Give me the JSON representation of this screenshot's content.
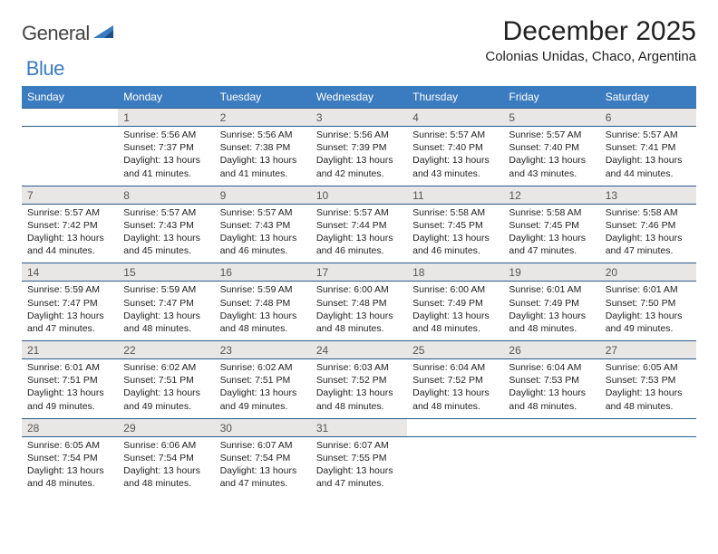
{
  "logo": {
    "text1": "General",
    "text2": "Blue"
  },
  "title": "December 2025",
  "location": "Colonias Unidas, Chaco, Argentina",
  "colors": {
    "header_bg": "#3b7bbf",
    "daynum_bg": "#e8e7e6",
    "row_border": "#2a5a8a"
  },
  "dayHeaders": [
    "Sunday",
    "Monday",
    "Tuesday",
    "Wednesday",
    "Thursday",
    "Friday",
    "Saturday"
  ],
  "weeks": [
    {
      "nums": [
        "",
        "1",
        "2",
        "3",
        "4",
        "5",
        "6"
      ],
      "sun": [
        "",
        "Sunrise: 5:56 AM",
        "Sunrise: 5:56 AM",
        "Sunrise: 5:56 AM",
        "Sunrise: 5:57 AM",
        "Sunrise: 5:57 AM",
        "Sunrise: 5:57 AM"
      ],
      "set": [
        "",
        "Sunset: 7:37 PM",
        "Sunset: 7:38 PM",
        "Sunset: 7:39 PM",
        "Sunset: 7:40 PM",
        "Sunset: 7:40 PM",
        "Sunset: 7:41 PM"
      ],
      "day1": [
        "",
        "Daylight: 13 hours",
        "Daylight: 13 hours",
        "Daylight: 13 hours",
        "Daylight: 13 hours",
        "Daylight: 13 hours",
        "Daylight: 13 hours"
      ],
      "day2": [
        "",
        "and 41 minutes.",
        "and 41 minutes.",
        "and 42 minutes.",
        "and 43 minutes.",
        "and 43 minutes.",
        "and 44 minutes."
      ]
    },
    {
      "nums": [
        "7",
        "8",
        "9",
        "10",
        "11",
        "12",
        "13"
      ],
      "sun": [
        "Sunrise: 5:57 AM",
        "Sunrise: 5:57 AM",
        "Sunrise: 5:57 AM",
        "Sunrise: 5:57 AM",
        "Sunrise: 5:58 AM",
        "Sunrise: 5:58 AM",
        "Sunrise: 5:58 AM"
      ],
      "set": [
        "Sunset: 7:42 PM",
        "Sunset: 7:43 PM",
        "Sunset: 7:43 PM",
        "Sunset: 7:44 PM",
        "Sunset: 7:45 PM",
        "Sunset: 7:45 PM",
        "Sunset: 7:46 PM"
      ],
      "day1": [
        "Daylight: 13 hours",
        "Daylight: 13 hours",
        "Daylight: 13 hours",
        "Daylight: 13 hours",
        "Daylight: 13 hours",
        "Daylight: 13 hours",
        "Daylight: 13 hours"
      ],
      "day2": [
        "and 44 minutes.",
        "and 45 minutes.",
        "and 46 minutes.",
        "and 46 minutes.",
        "and 46 minutes.",
        "and 47 minutes.",
        "and 47 minutes."
      ]
    },
    {
      "nums": [
        "14",
        "15",
        "16",
        "17",
        "18",
        "19",
        "20"
      ],
      "sun": [
        "Sunrise: 5:59 AM",
        "Sunrise: 5:59 AM",
        "Sunrise: 5:59 AM",
        "Sunrise: 6:00 AM",
        "Sunrise: 6:00 AM",
        "Sunrise: 6:01 AM",
        "Sunrise: 6:01 AM"
      ],
      "set": [
        "Sunset: 7:47 PM",
        "Sunset: 7:47 PM",
        "Sunset: 7:48 PM",
        "Sunset: 7:48 PM",
        "Sunset: 7:49 PM",
        "Sunset: 7:49 PM",
        "Sunset: 7:50 PM"
      ],
      "day1": [
        "Daylight: 13 hours",
        "Daylight: 13 hours",
        "Daylight: 13 hours",
        "Daylight: 13 hours",
        "Daylight: 13 hours",
        "Daylight: 13 hours",
        "Daylight: 13 hours"
      ],
      "day2": [
        "and 47 minutes.",
        "and 48 minutes.",
        "and 48 minutes.",
        "and 48 minutes.",
        "and 48 minutes.",
        "and 48 minutes.",
        "and 49 minutes."
      ]
    },
    {
      "nums": [
        "21",
        "22",
        "23",
        "24",
        "25",
        "26",
        "27"
      ],
      "sun": [
        "Sunrise: 6:01 AM",
        "Sunrise: 6:02 AM",
        "Sunrise: 6:02 AM",
        "Sunrise: 6:03 AM",
        "Sunrise: 6:04 AM",
        "Sunrise: 6:04 AM",
        "Sunrise: 6:05 AM"
      ],
      "set": [
        "Sunset: 7:51 PM",
        "Sunset: 7:51 PM",
        "Sunset: 7:51 PM",
        "Sunset: 7:52 PM",
        "Sunset: 7:52 PM",
        "Sunset: 7:53 PM",
        "Sunset: 7:53 PM"
      ],
      "day1": [
        "Daylight: 13 hours",
        "Daylight: 13 hours",
        "Daylight: 13 hours",
        "Daylight: 13 hours",
        "Daylight: 13 hours",
        "Daylight: 13 hours",
        "Daylight: 13 hours"
      ],
      "day2": [
        "and 49 minutes.",
        "and 49 minutes.",
        "and 49 minutes.",
        "and 48 minutes.",
        "and 48 minutes.",
        "and 48 minutes.",
        "and 48 minutes."
      ]
    },
    {
      "nums": [
        "28",
        "29",
        "30",
        "31",
        "",
        "",
        ""
      ],
      "sun": [
        "Sunrise: 6:05 AM",
        "Sunrise: 6:06 AM",
        "Sunrise: 6:07 AM",
        "Sunrise: 6:07 AM",
        "",
        "",
        ""
      ],
      "set": [
        "Sunset: 7:54 PM",
        "Sunset: 7:54 PM",
        "Sunset: 7:54 PM",
        "Sunset: 7:55 PM",
        "",
        "",
        ""
      ],
      "day1": [
        "Daylight: 13 hours",
        "Daylight: 13 hours",
        "Daylight: 13 hours",
        "Daylight: 13 hours",
        "",
        "",
        ""
      ],
      "day2": [
        "and 48 minutes.",
        "and 48 minutes.",
        "and 47 minutes.",
        "and 47 minutes.",
        "",
        "",
        ""
      ]
    }
  ]
}
